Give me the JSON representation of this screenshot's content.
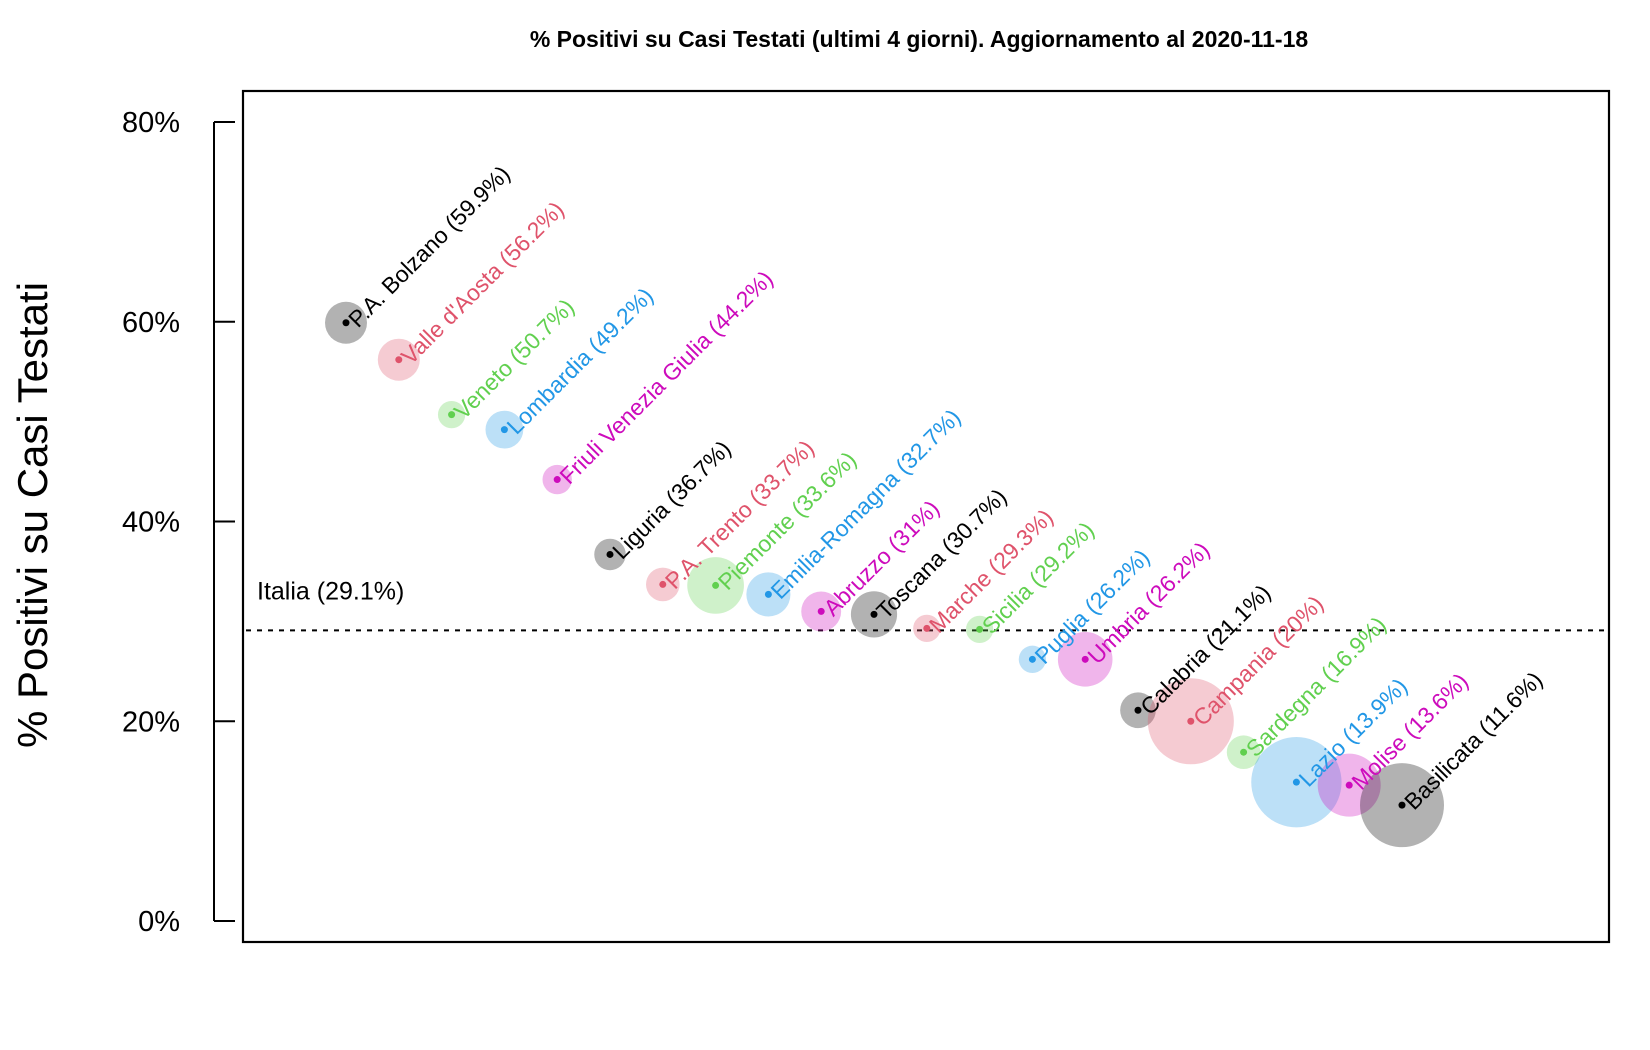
{
  "chart_data": {
    "type": "scatter",
    "title": "% Positivi su Casi Testati (ultimi 4 giorni). Aggiornamento al  2020-11-18",
    "xlabel": "",
    "ylabel": "% Positivi su Casi Testati",
    "ylim": [
      0,
      80
    ],
    "yticks": [
      0,
      20,
      40,
      60,
      80
    ],
    "ytick_labels": [
      "0%",
      "20%",
      "40%",
      "60%",
      "80%"
    ],
    "reference_line": {
      "label": "Italia (29.1%)",
      "value": 29.1,
      "style": "dashed"
    },
    "palette": [
      "#000000",
      "#DF536B",
      "#61D04F",
      "#2297E6",
      "#CD0BBC"
    ],
    "points": [
      {
        "name": "P.A. Bolzano",
        "label": "P.A. Bolzano (59.9%)",
        "value": 59.9,
        "size": 2.0
      },
      {
        "name": "Valle d'Aosta",
        "label": "Valle d'Aosta (56.2%)",
        "value": 56.2,
        "size": 2.0
      },
      {
        "name": "Veneto",
        "label": "Veneto (50.7%)",
        "value": 50.7,
        "size": 1.3
      },
      {
        "name": "Lombardia",
        "label": "Lombardia (49.2%)",
        "value": 49.2,
        "size": 1.8
      },
      {
        "name": "Friuli Venezia Giulia",
        "label": "Friuli Venezia Giulia (44.2%)",
        "value": 44.2,
        "size": 1.4
      },
      {
        "name": "Liguria",
        "label": "Liguria (36.7%)",
        "value": 36.7,
        "size": 1.5
      },
      {
        "name": "P.A. Trento",
        "label": "P.A. Trento (33.7%)",
        "value": 33.7,
        "size": 1.6
      },
      {
        "name": "Piemonte",
        "label": "Piemonte (33.6%)",
        "value": 33.6,
        "size": 2.7
      },
      {
        "name": "Emilia-Romagna",
        "label": "Emilia-Romagna (32.7%)",
        "value": 32.7,
        "size": 2.1
      },
      {
        "name": "Abruzzo",
        "label": "Abruzzo (31%)",
        "value": 31.0,
        "size": 1.9
      },
      {
        "name": "Toscana",
        "label": "Toscana (30.7%)",
        "value": 30.7,
        "size": 2.2
      },
      {
        "name": "Marche",
        "label": "Marche (29.3%)",
        "value": 29.3,
        "size": 1.3
      },
      {
        "name": "Sicilia",
        "label": "Sicilia (29.2%)",
        "value": 29.2,
        "size": 1.3
      },
      {
        "name": "Puglia",
        "label": "Puglia (26.2%)",
        "value": 26.2,
        "size": 1.3
      },
      {
        "name": "Umbria",
        "label": "Umbria (26.2%)",
        "value": 26.2,
        "size": 2.6
      },
      {
        "name": "Calabria",
        "label": "Calabria (21.1%)",
        "value": 21.1,
        "size": 1.7
      },
      {
        "name": "Campania",
        "label": "Campania (20%)",
        "value": 20.0,
        "size": 4.1
      },
      {
        "name": "Sardegna",
        "label": "Sardegna (16.9%)",
        "value": 16.9,
        "size": 1.6
      },
      {
        "name": "Lazio",
        "label": "Lazio (13.9%)",
        "value": 13.9,
        "size": 4.3
      },
      {
        "name": "Molise",
        "label": "Molise (13.6%)",
        "value": 13.6,
        "size": 3.0
      },
      {
        "name": "Basilicata",
        "label": "Basilicata (11.6%)",
        "value": 11.6,
        "size": 4.0
      }
    ]
  }
}
